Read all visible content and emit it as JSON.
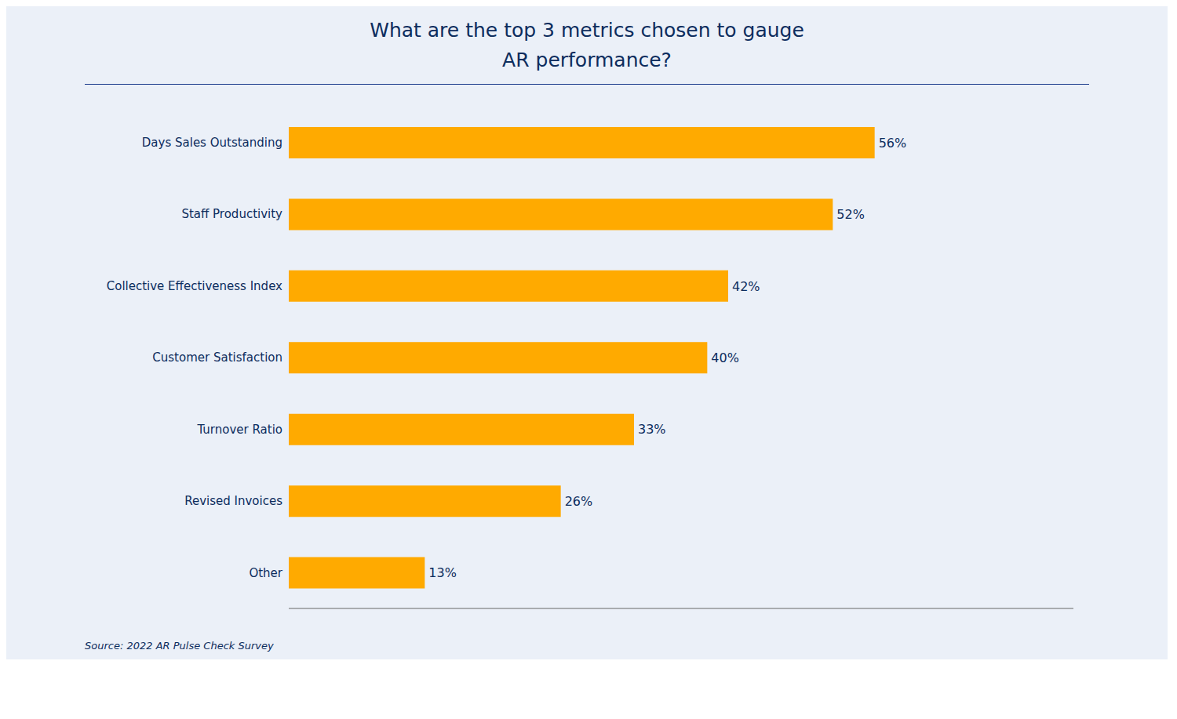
{
  "chart_data": {
    "type": "bar",
    "orientation": "horizontal",
    "title": "What are the top 3 metrics chosen to gauge\nAR performance?",
    "categories": [
      "Days Sales Outstanding",
      "Staff Productivity",
      "Collective Effectiveness Index",
      "Customer Satisfaction",
      "Turnover Ratio",
      "Revised Invoices",
      "Other"
    ],
    "values": [
      56,
      52,
      42,
      40,
      33,
      26,
      13
    ],
    "value_labels": [
      "56%",
      "52%",
      "42%",
      "40%",
      "33%",
      "26%",
      "13%"
    ],
    "data_labels": true,
    "color": "#FFAA00",
    "xlim": [
      0,
      75
    ],
    "tick_labels": "y",
    "grid": false,
    "annotations": [
      "Source: 2022 AR Pulse Check Survey"
    ]
  }
}
